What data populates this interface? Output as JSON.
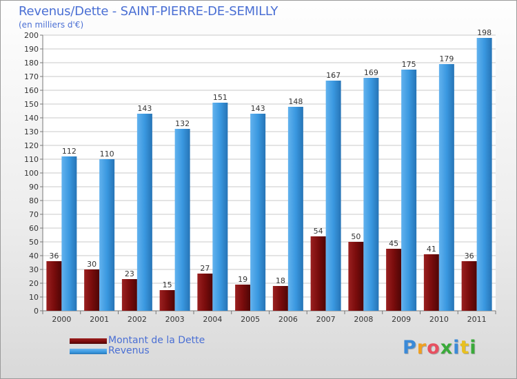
{
  "title": "Revenus/Dette - SAINT-PIERRE-DE-SEMILLY",
  "subtitle": "(en milliers d'€)",
  "brand": {
    "letters": [
      "P",
      "r",
      "o",
      "x",
      "i",
      "t",
      "i"
    ],
    "colors": [
      "#3a8ad8",
      "#f0a020",
      "#e85060",
      "#3aaa3a",
      "#3a8ad8",
      "#e8c020",
      "#3aaa3a"
    ]
  },
  "chart_data": {
    "type": "bar",
    "categories": [
      "2000",
      "2001",
      "2002",
      "2003",
      "2004",
      "2005",
      "2006",
      "2007",
      "2008",
      "2009",
      "2010",
      "2011"
    ],
    "series": [
      {
        "name": "Montant de la Dette",
        "color": "#7a0a0a",
        "values": [
          36,
          30,
          23,
          15,
          27,
          19,
          18,
          54,
          50,
          45,
          41,
          36
        ]
      },
      {
        "name": "Revenus",
        "color": "#3a98e0",
        "values": [
          112,
          110,
          143,
          132,
          151,
          143,
          148,
          167,
          169,
          175,
          179,
          198
        ]
      }
    ],
    "ylim": [
      0,
      200
    ],
    "yticks": [
      "0",
      "10",
      "20",
      "30",
      "40",
      "50",
      "60",
      "70",
      "80",
      "90",
      "100",
      "110",
      "120",
      "130",
      "140",
      "150",
      "160",
      "170",
      "180",
      "190",
      "200"
    ],
    "grid": true,
    "legend": "bottom-left"
  }
}
